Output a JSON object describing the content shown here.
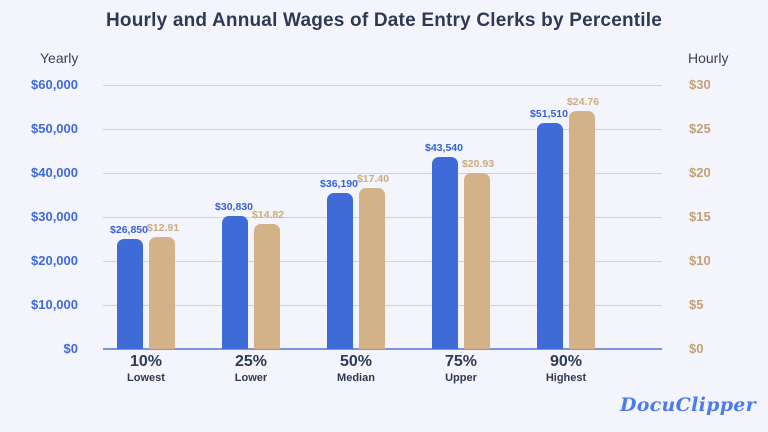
{
  "title": "Hourly and Annual Wages of Date Entry Clerks by Percentile",
  "logo_text": "DocuClipper",
  "left_axis": {
    "label": "Yearly",
    "ticks": [
      "$60,000",
      "$50,000",
      "$40,000",
      "$30,000",
      "$20,000",
      "$10,000",
      "$0"
    ]
  },
  "right_axis": {
    "label": "Hourly",
    "ticks": [
      "$30",
      "$25",
      "$20",
      "$15",
      "$10",
      "$5",
      "$0"
    ]
  },
  "chart_data": {
    "type": "bar",
    "title": "Hourly and Annual Wages of Date Entry Clerks by Percentile",
    "categories": [
      "10%",
      "25%",
      "50%",
      "75%",
      "90%"
    ],
    "category_sublabels": [
      "Lowest",
      "Lower",
      "Median",
      "Upper",
      "Highest"
    ],
    "series": [
      {
        "name": "Yearly wage",
        "axis": "left",
        "color": "#3f6bd9",
        "values": [
          26850,
          30830,
          36190,
          43540,
          51510
        ],
        "labels": [
          "$26,850",
          "$30,830",
          "$36,190",
          "$43,540",
          "$51,510"
        ]
      },
      {
        "name": "Hourly wage",
        "axis": "right",
        "color": "#d3b287",
        "values": [
          12.91,
          14.82,
          17.4,
          20.93,
          24.76
        ],
        "labels": [
          "$12.91",
          "$14.82",
          "$17.40",
          "$20.93",
          "$24.76"
        ]
      }
    ],
    "left_axis_range": [
      0,
      60000
    ],
    "right_axis_range": [
      0,
      30
    ],
    "grid": true,
    "legend_position": "none",
    "layout_hints": {
      "yearly_bar_height_frac": [
        0.417,
        0.504,
        0.591,
        0.727,
        0.856
      ],
      "hourly_bar_height_frac": [
        0.424,
        0.473,
        0.61,
        0.667,
        0.902
      ]
    }
  },
  "colors": {
    "background": "#f4f4fc",
    "title_text": "#2e3a52",
    "yearly_bar": "#3f6bd9",
    "hourly_bar": "#d3b287",
    "left_tick_text": "#3e6ad9",
    "right_tick_text": "#c2a074",
    "gridline": "#c9d3f0",
    "baseline": "#7c94e0",
    "logo_blue": "#4d7be8"
  }
}
